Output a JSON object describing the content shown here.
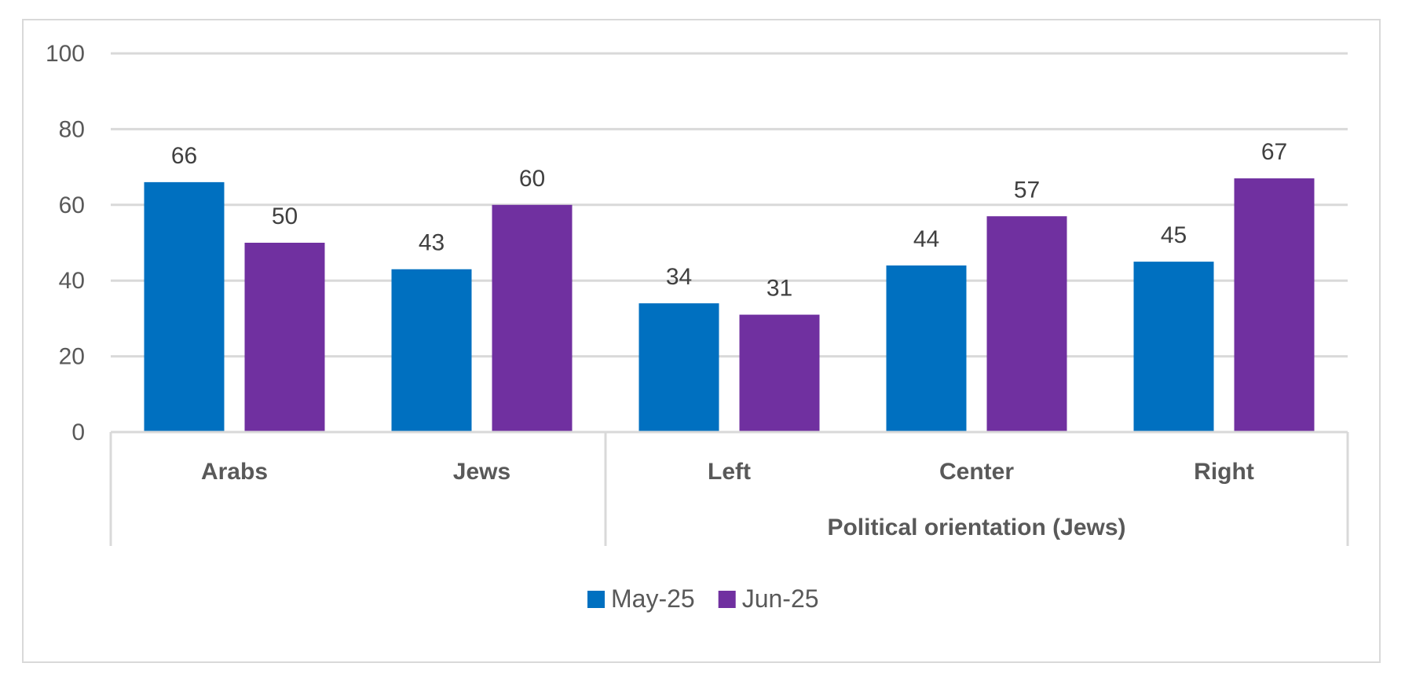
{
  "chart_data": {
    "type": "bar",
    "title": "",
    "xlabel": "",
    "ylabel": "",
    "ylim": [
      0,
      100
    ],
    "yticks": [
      0,
      20,
      40,
      60,
      80,
      100
    ],
    "grid": true,
    "legend_position": "bottom",
    "categories": [
      "Arabs",
      "Jews",
      "Left",
      "Center",
      "Right"
    ],
    "category_groups": [
      {
        "label": "",
        "members": [
          "Arabs",
          "Jews"
        ]
      },
      {
        "label": "Political orientation (Jews)",
        "members": [
          "Left",
          "Center",
          "Right"
        ]
      }
    ],
    "series": [
      {
        "name": "May-25",
        "color": "#0070c0",
        "values": [
          66,
          43,
          34,
          44,
          45
        ]
      },
      {
        "name": "Jun-25",
        "color": "#7030a0",
        "values": [
          50,
          60,
          31,
          57,
          67
        ]
      }
    ]
  }
}
